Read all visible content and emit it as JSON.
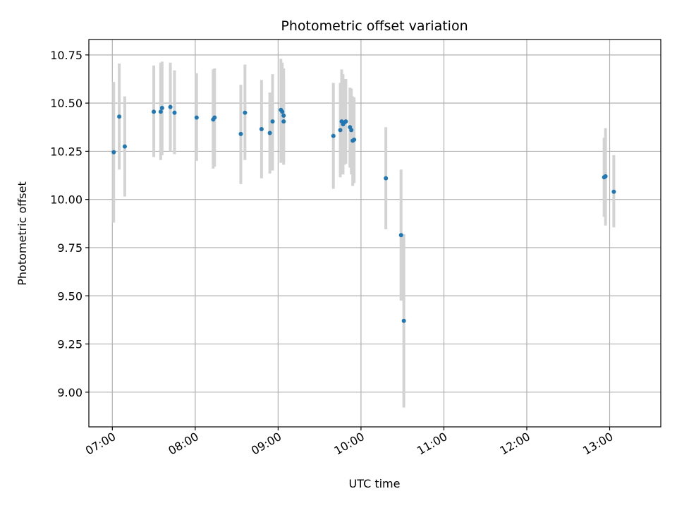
{
  "chart_data": {
    "type": "scatter",
    "title": "Photometric offset variation",
    "xlabel": "UTC time",
    "ylabel": "Photometric offset",
    "x_ticks": [
      {
        "value": "07:00",
        "label": "07:00"
      },
      {
        "value": "08:00",
        "label": "08:00"
      },
      {
        "value": "09:00",
        "label": "09:00"
      },
      {
        "value": "10:00",
        "label": "10:00"
      },
      {
        "value": "11:00",
        "label": "11:00"
      },
      {
        "value": "12:00",
        "label": "12:00"
      },
      {
        "value": "13:00",
        "label": "13:00"
      }
    ],
    "y_ticks": [
      {
        "value": 9.0,
        "label": "9.00"
      },
      {
        "value": 9.25,
        "label": "9.25"
      },
      {
        "value": 9.5,
        "label": "9.50"
      },
      {
        "value": 9.75,
        "label": "9.75"
      },
      {
        "value": 10.0,
        "label": "10.00"
      },
      {
        "value": 10.25,
        "label": "10.25"
      },
      {
        "value": 10.5,
        "label": "10.50"
      },
      {
        "value": 10.75,
        "label": "10.75"
      }
    ],
    "xlim": [
      "06:43",
      "13:37"
    ],
    "ylim": [
      8.82,
      10.83
    ],
    "grid": true,
    "x_tick_rotation": "rotated",
    "marker_color": "#1f77b4",
    "errorbar_color": "#d3d3d3",
    "points": [
      {
        "x": "07:01",
        "y": 10.245,
        "low": 9.88,
        "high": 10.61
      },
      {
        "x": "07:05",
        "y": 10.43,
        "low": 10.155,
        "high": 10.705
      },
      {
        "x": "07:09",
        "y": 10.275,
        "low": 10.015,
        "high": 10.535
      },
      {
        "x": "07:30",
        "y": 10.455,
        "low": 10.22,
        "high": 10.695
      },
      {
        "x": "07:35",
        "y": 10.455,
        "low": 10.205,
        "high": 10.71
      },
      {
        "x": "07:36",
        "y": 10.475,
        "low": 10.23,
        "high": 10.715
      },
      {
        "x": "07:42",
        "y": 10.48,
        "low": 10.25,
        "high": 10.71
      },
      {
        "x": "07:45",
        "y": 10.45,
        "low": 10.235,
        "high": 10.67
      },
      {
        "x": "08:01",
        "y": 10.425,
        "low": 10.2,
        "high": 10.655
      },
      {
        "x": "08:13",
        "y": 10.415,
        "low": 10.16,
        "high": 10.675
      },
      {
        "x": "08:14",
        "y": 10.425,
        "low": 10.17,
        "high": 10.68
      },
      {
        "x": "08:33",
        "y": 10.34,
        "low": 10.08,
        "high": 10.595
      },
      {
        "x": "08:36",
        "y": 10.45,
        "low": 10.205,
        "high": 10.7
      },
      {
        "x": "08:48",
        "y": 10.365,
        "low": 10.11,
        "high": 10.62
      },
      {
        "x": "08:54",
        "y": 10.345,
        "low": 10.135,
        "high": 10.555
      },
      {
        "x": "08:56",
        "y": 10.405,
        "low": 10.15,
        "high": 10.65
      },
      {
        "x": "09:02",
        "y": 10.465,
        "low": 10.19,
        "high": 10.73
      },
      {
        "x": "09:03",
        "y": 10.455,
        "low": 10.2,
        "high": 10.71
      },
      {
        "x": "09:04",
        "y": 10.405,
        "low": 10.18,
        "high": 10.63
      },
      {
        "x": "09:04",
        "y": 10.435,
        "low": 10.19,
        "high": 10.68
      },
      {
        "x": "09:40",
        "y": 10.33,
        "low": 10.055,
        "high": 10.605
      },
      {
        "x": "09:45",
        "y": 10.36,
        "low": 10.115,
        "high": 10.605
      },
      {
        "x": "09:46",
        "y": 10.405,
        "low": 10.135,
        "high": 10.675
      },
      {
        "x": "09:47",
        "y": 10.39,
        "low": 10.13,
        "high": 10.65
      },
      {
        "x": "09:48",
        "y": 10.4,
        "low": 10.18,
        "high": 10.62
      },
      {
        "x": "09:49",
        "y": 10.405,
        "low": 10.185,
        "high": 10.625
      },
      {
        "x": "09:52",
        "y": 10.375,
        "low": 10.165,
        "high": 10.58
      },
      {
        "x": "09:53",
        "y": 10.36,
        "low": 10.13,
        "high": 10.575
      },
      {
        "x": "09:54",
        "y": 10.305,
        "low": 10.07,
        "high": 10.535
      },
      {
        "x": "09:55",
        "y": 10.31,
        "low": 10.085,
        "high": 10.53
      },
      {
        "x": "10:18",
        "y": 10.11,
        "low": 9.845,
        "high": 10.375
      },
      {
        "x": "10:29",
        "y": 9.815,
        "low": 9.475,
        "high": 10.155
      },
      {
        "x": "10:31",
        "y": 9.37,
        "low": 8.92,
        "high": 9.82
      },
      {
        "x": "12:56",
        "y": 10.115,
        "low": 9.91,
        "high": 10.32
      },
      {
        "x": "12:57",
        "y": 10.12,
        "low": 9.865,
        "high": 10.37
      },
      {
        "x": "13:03",
        "y": 10.04,
        "low": 9.855,
        "high": 10.23
      }
    ]
  }
}
